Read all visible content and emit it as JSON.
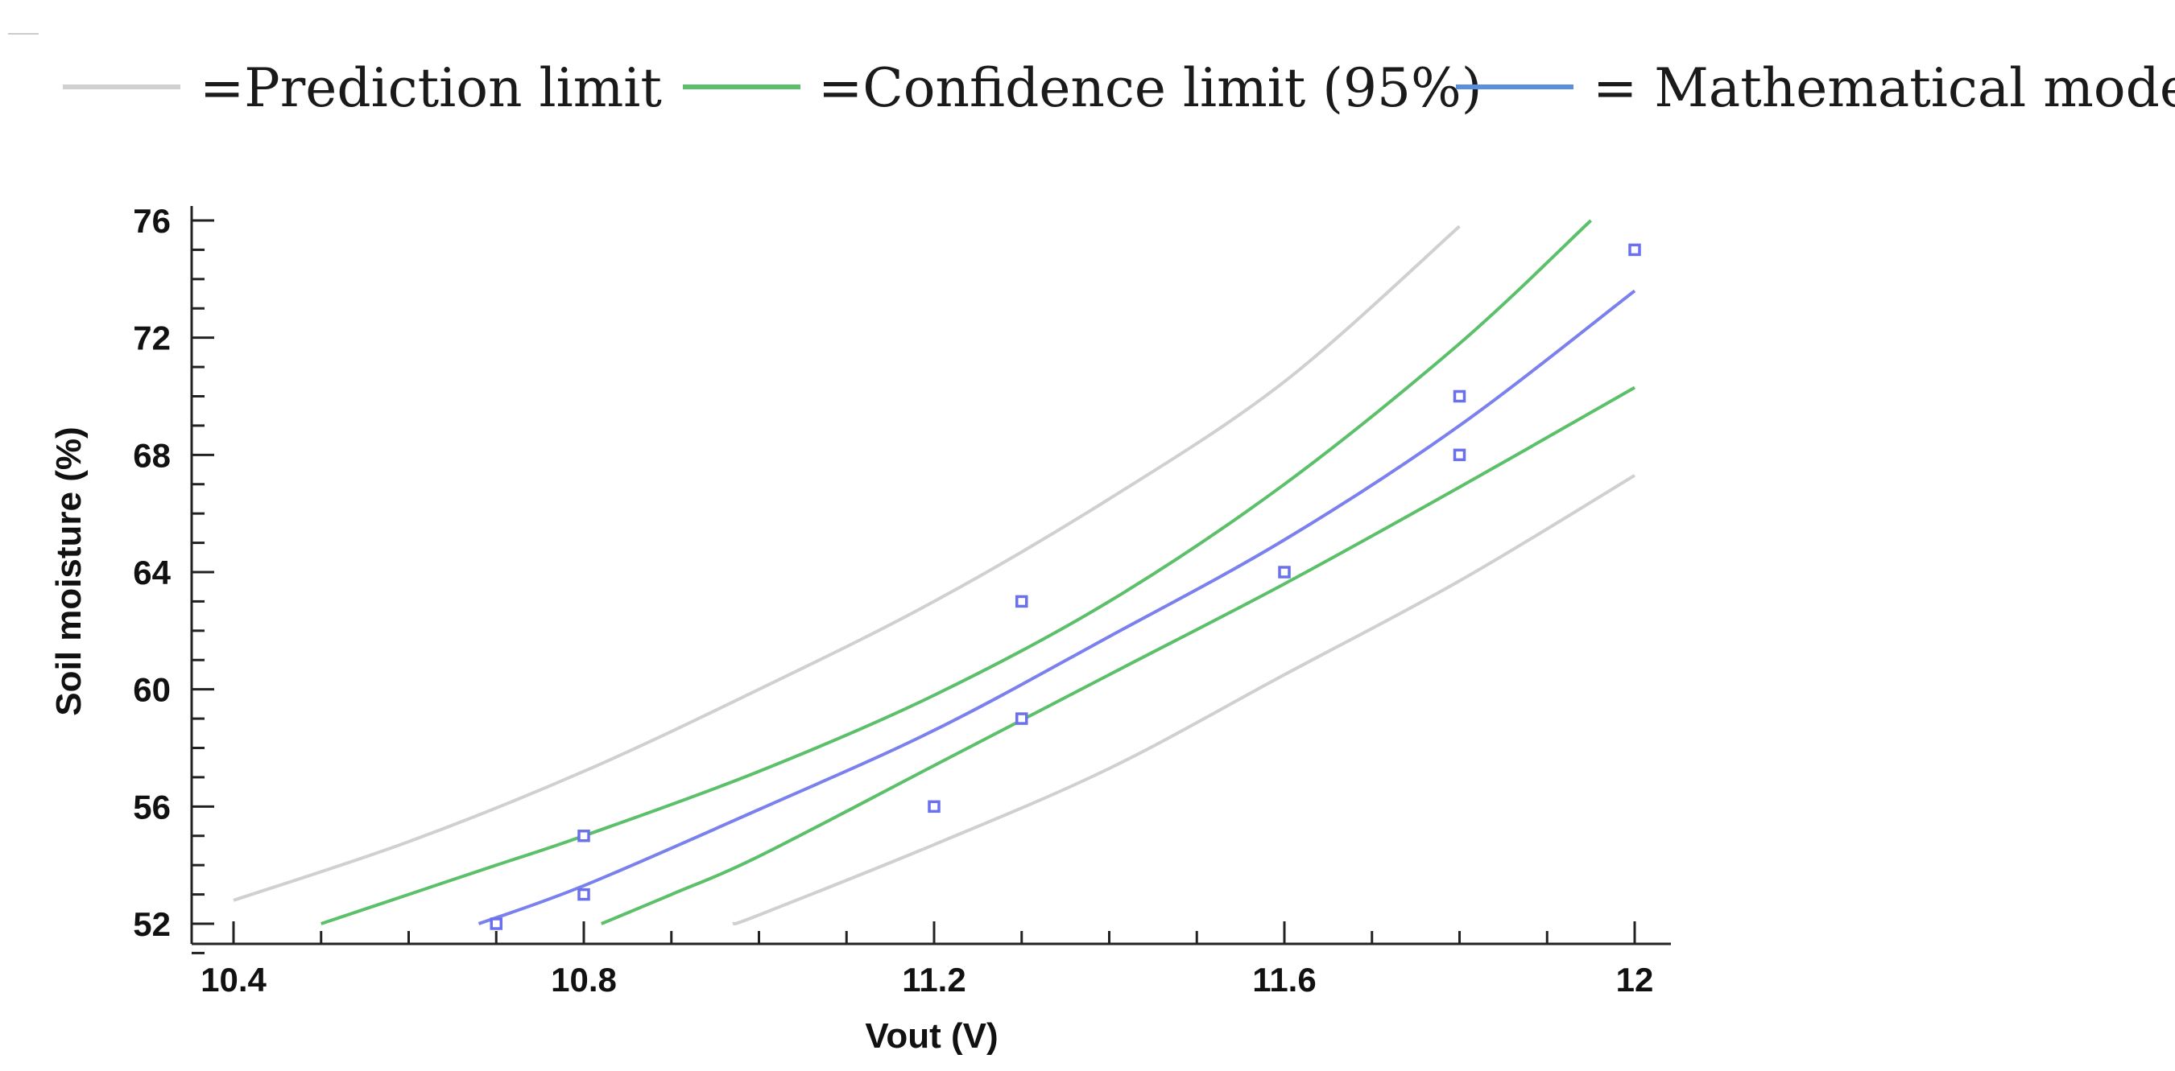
{
  "legend": {
    "prediction": "=Prediction limit",
    "confidence": "=Confidence limit (95%)",
    "model": "= Mathematical model"
  },
  "colors": {
    "prediction": "#d0d0d0",
    "confidence": "#5cc06a",
    "model": "#7a80ee",
    "points": "#6a70ee",
    "axis": "#222222"
  },
  "chart_data": {
    "type": "scatter",
    "title": "",
    "xlabel": "Vout (V)",
    "ylabel": "Soil moisture (%)",
    "xlim": [
      10.4,
      12
    ],
    "ylim": [
      51.5,
      76
    ],
    "xticks": [
      10.4,
      10.8,
      11.2,
      11.6,
      12
    ],
    "xtick_labels": [
      "10.4",
      "10.8",
      "11.2",
      "11.6",
      "12"
    ],
    "yticks": [
      52,
      56,
      60,
      64,
      68,
      72,
      76
    ],
    "ytick_labels": [
      "52",
      "56",
      "60",
      "64",
      "68",
      "72",
      "76"
    ],
    "points": [
      {
        "x": 10.7,
        "y": 52
      },
      {
        "x": 10.8,
        "y": 53
      },
      {
        "x": 10.8,
        "y": 55
      },
      {
        "x": 11.2,
        "y": 56
      },
      {
        "x": 11.3,
        "y": 59
      },
      {
        "x": 11.3,
        "y": 63
      },
      {
        "x": 11.6,
        "y": 64
      },
      {
        "x": 11.8,
        "y": 68
      },
      {
        "x": 11.8,
        "y": 70
      },
      {
        "x": 12.0,
        "y": 75
      }
    ],
    "series": [
      {
        "name": "prediction-upper",
        "kind": "prediction",
        "x": [
          10.4,
          10.6,
          10.8,
          11.0,
          11.2,
          11.4,
          11.6,
          11.8
        ],
        "y": [
          52.8,
          54.8,
          57.2,
          60.0,
          63.0,
          66.5,
          70.5,
          75.8
        ]
      },
      {
        "name": "confidence-upper",
        "kind": "confidence",
        "x": [
          10.5,
          10.6,
          10.7,
          10.8,
          11.0,
          11.2,
          11.4,
          11.6,
          11.8,
          11.95
        ],
        "y": [
          52.0,
          53.0,
          54.0,
          55.0,
          57.2,
          59.8,
          63.0,
          67.0,
          71.8,
          76.0
        ]
      },
      {
        "name": "model",
        "kind": "model",
        "x": [
          10.68,
          10.8,
          11.0,
          11.2,
          11.4,
          11.6,
          11.8,
          12.0
        ],
        "y": [
          52.0,
          53.3,
          55.9,
          58.6,
          61.8,
          65.1,
          69.0,
          73.6
        ]
      },
      {
        "name": "confidence-lower",
        "kind": "confidence",
        "x": [
          10.82,
          10.9,
          11.0,
          11.2,
          11.4,
          11.6,
          11.8,
          12.0
        ],
        "y": [
          52.0,
          53.0,
          54.3,
          57.4,
          60.5,
          63.6,
          66.9,
          70.3
        ]
      },
      {
        "name": "prediction-lower",
        "kind": "prediction",
        "x": [
          10.97,
          11.0,
          11.2,
          11.4,
          11.6,
          11.8,
          12.0
        ],
        "y": [
          52.0,
          52.3,
          54.7,
          57.3,
          60.5,
          63.7,
          67.3
        ]
      }
    ]
  }
}
